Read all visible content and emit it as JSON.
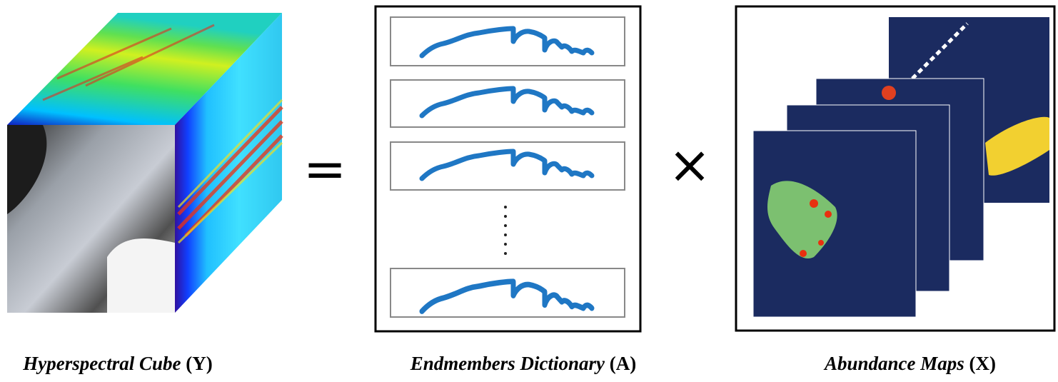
{
  "panels": [
    {
      "name": "Hyperspectral Cube",
      "symbol": "(Y)"
    },
    {
      "name": "Endmembers Dictionary",
      "symbol": "(A)"
    },
    {
      "name": "Abundance Maps",
      "symbol": "(X)"
    }
  ],
  "operators": {
    "equals": "=",
    "times": "×"
  }
}
